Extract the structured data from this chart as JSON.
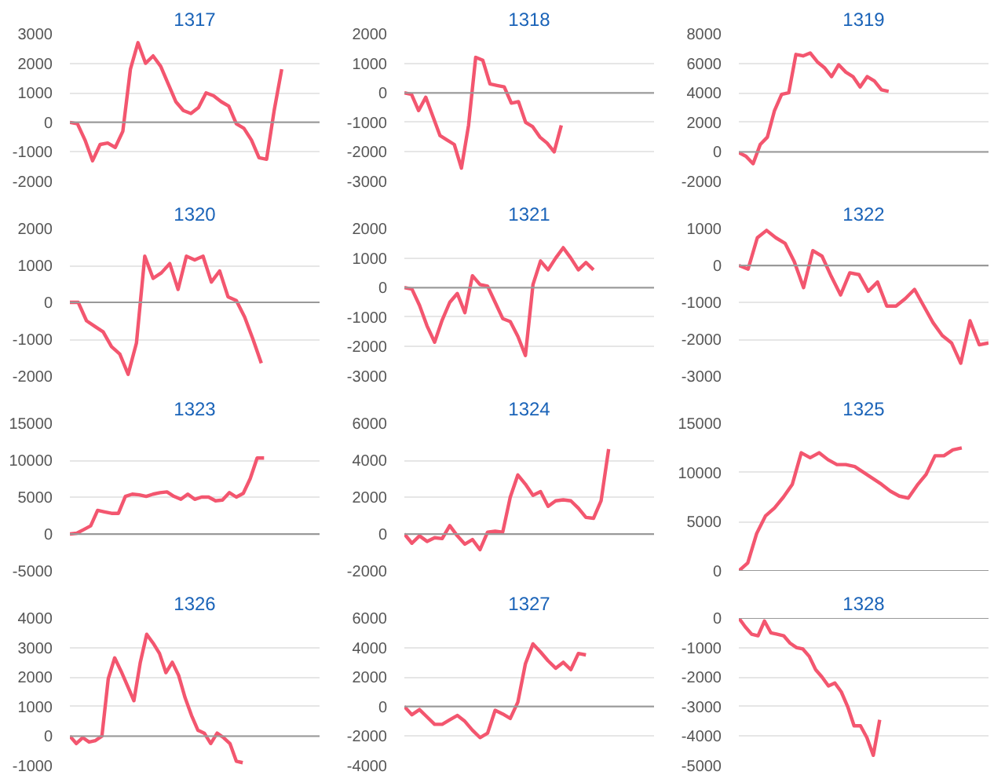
{
  "chart_data": [
    {
      "type": "line",
      "title": "1317",
      "categories": [
        null,
        null,
        null,
        null,
        null,
        null,
        null,
        null,
        null,
        null,
        null,
        null,
        null,
        null,
        null,
        null,
        null,
        null,
        null,
        null,
        null,
        null,
        null,
        null,
        null,
        null,
        null,
        null,
        null,
        null,
        null,
        null,
        null,
        null
      ],
      "series": [
        {
          "color": "#f3566f",
          "values": [
            0,
            -50,
            -600,
            -1300,
            -750,
            -700,
            -850,
            -300,
            1800,
            2700,
            2000,
            2250,
            1900,
            1300,
            700,
            400,
            300,
            500,
            1000,
            900,
            700,
            550,
            -50,
            -200,
            -600,
            -1200,
            -1250,
            400,
            1800,
            null,
            null,
            null,
            null,
            null
          ]
        }
      ],
      "ylim": [
        -2000,
        3000
      ],
      "yticks": [
        -2000,
        -1000,
        0,
        1000,
        2000,
        3000
      ],
      "grid": "y",
      "ref_lines": [
        {
          "axis": "y",
          "value": 0,
          "color": "#999999"
        }
      ],
      "tick_labels": "y"
    },
    {
      "type": "line",
      "title": "1318",
      "categories": [
        null,
        null,
        null,
        null,
        null,
        null,
        null,
        null,
        null,
        null,
        null,
        null,
        null,
        null,
        null,
        null,
        null,
        null,
        null,
        null,
        null,
        null,
        null,
        null,
        null,
        null,
        null,
        null,
        null,
        null,
        null,
        null,
        null,
        null,
        null,
        null
      ],
      "series": [
        {
          "color": "#f3566f",
          "values": [
            0,
            -50,
            -600,
            -150,
            -800,
            -1450,
            -1600,
            -1750,
            -2550,
            -1100,
            1200,
            1100,
            300,
            250,
            200,
            -350,
            -300,
            -1000,
            -1150,
            -1500,
            -1700,
            -2000,
            -1100,
            null,
            null,
            null,
            null,
            null,
            null,
            null,
            null,
            null,
            null,
            null,
            null,
            null
          ]
        }
      ],
      "ylim": [
        -3000,
        2000
      ],
      "yticks": [
        -3000,
        -2000,
        -1000,
        0,
        1000,
        2000
      ],
      "grid": "y",
      "ref_lines": [
        {
          "axis": "y",
          "value": 0,
          "color": "#999999"
        }
      ],
      "tick_labels": "y"
    },
    {
      "type": "line",
      "title": "1319",
      "categories": [
        null,
        null,
        null,
        null,
        null,
        null,
        null,
        null,
        null,
        null,
        null,
        null,
        null,
        null,
        null,
        null,
        null,
        null,
        null,
        null,
        null,
        null,
        null,
        null,
        null,
        null,
        null,
        null,
        null,
        null,
        null,
        null,
        null,
        null,
        null,
        null
      ],
      "series": [
        {
          "color": "#f3566f",
          "values": [
            -50,
            -300,
            -800,
            500,
            1000,
            2800,
            3900,
            4000,
            6600,
            6500,
            6700,
            6100,
            5700,
            5100,
            5900,
            5400,
            5100,
            4400,
            5100,
            4800,
            4200,
            4100,
            null,
            null,
            null,
            null,
            null,
            null,
            null,
            null,
            null,
            null,
            null,
            null,
            null,
            null
          ]
        }
      ],
      "ylim": [
        -2000,
        8000
      ],
      "yticks": [
        -2000,
        0,
        2000,
        4000,
        6000,
        8000
      ],
      "grid": "y",
      "ref_lines": [
        {
          "axis": "y",
          "value": 0,
          "color": "#999999"
        }
      ],
      "tick_labels": "y"
    },
    {
      "type": "line",
      "title": "1320",
      "categories": [
        null,
        null,
        null,
        null,
        null,
        null,
        null,
        null,
        null,
        null,
        null,
        null,
        null,
        null,
        null,
        null,
        null,
        null,
        null,
        null,
        null,
        null,
        null,
        null,
        null,
        null,
        null,
        null,
        null,
        null,
        null
      ],
      "series": [
        {
          "color": "#f3566f",
          "values": [
            0,
            0,
            -500,
            -650,
            -800,
            -1200,
            -1400,
            -1950,
            -1100,
            1250,
            650,
            800,
            1050,
            350,
            1250,
            1150,
            1250,
            550,
            850,
            150,
            50,
            -400,
            -1000,
            -1650,
            null,
            null,
            null,
            null,
            null,
            null,
            null
          ]
        }
      ],
      "ylim": [
        -2000,
        2000
      ],
      "yticks": [
        -2000,
        -1000,
        0,
        1000,
        2000
      ],
      "grid": "y",
      "ref_lines": [
        {
          "axis": "y",
          "value": 0,
          "color": "#999999"
        }
      ],
      "tick_labels": "y"
    },
    {
      "type": "line",
      "title": "1321",
      "categories": [
        null,
        null,
        null,
        null,
        null,
        null,
        null,
        null,
        null,
        null,
        null,
        null,
        null,
        null,
        null,
        null,
        null,
        null,
        null,
        null,
        null,
        null,
        null,
        null,
        null,
        null,
        null,
        null,
        null,
        null,
        null,
        null,
        null,
        null
      ],
      "series": [
        {
          "color": "#f3566f",
          "values": [
            0,
            -50,
            -600,
            -1300,
            -1850,
            -1100,
            -500,
            -200,
            -850,
            400,
            100,
            50,
            -500,
            -1050,
            -1150,
            -1650,
            -2300,
            100,
            900,
            600,
            1000,
            1350,
            1000,
            600,
            850,
            600,
            null,
            null,
            null,
            null,
            null,
            null,
            null,
            null
          ]
        }
      ],
      "ylim": [
        -3000,
        2000
      ],
      "yticks": [
        -3000,
        -2000,
        -1000,
        0,
        1000,
        2000
      ],
      "grid": "y",
      "ref_lines": [
        {
          "axis": "y",
          "value": 0,
          "color": "#999999"
        }
      ],
      "tick_labels": "y"
    },
    {
      "type": "line",
      "title": "1322",
      "categories": [
        null,
        null,
        null,
        null,
        null,
        null,
        null,
        null,
        null,
        null,
        null,
        null,
        null,
        null,
        null,
        null,
        null,
        null,
        null,
        null,
        null,
        null,
        null,
        null,
        null,
        null,
        null,
        null
      ],
      "series": [
        {
          "color": "#f3566f",
          "values": [
            0,
            -100,
            750,
            950,
            750,
            600,
            100,
            -600,
            400,
            250,
            -300,
            -800,
            -200,
            -250,
            -700,
            -450,
            -1100,
            -1100,
            -900,
            -650,
            -1100,
            -1550,
            -1900,
            -2100,
            -2650,
            -1500,
            -2150,
            -2100
          ]
        }
      ],
      "ylim": [
        -3000,
        1000
      ],
      "yticks": [
        -3000,
        -2000,
        -1000,
        0,
        1000
      ],
      "grid": "y",
      "ref_lines": [
        {
          "axis": "y",
          "value": 0,
          "color": "#999999"
        }
      ],
      "tick_labels": "y"
    },
    {
      "type": "line",
      "title": "1323",
      "categories": [
        null,
        null,
        null,
        null,
        null,
        null,
        null,
        null,
        null,
        null,
        null,
        null,
        null,
        null,
        null,
        null,
        null,
        null,
        null,
        null,
        null,
        null,
        null,
        null,
        null,
        null,
        null,
        null,
        null,
        null,
        null,
        null,
        null,
        null,
        null,
        null,
        null
      ],
      "series": [
        {
          "color": "#f3566f",
          "values": [
            0,
            100,
            600,
            1100,
            3200,
            3000,
            2800,
            2800,
            5100,
            5400,
            5300,
            5100,
            5400,
            5600,
            5700,
            5100,
            4700,
            5400,
            4700,
            5000,
            5000,
            4500,
            4600,
            5600,
            5000,
            5500,
            7500,
            10300,
            10300,
            null,
            null,
            null,
            null,
            null,
            null,
            null,
            null
          ]
        }
      ],
      "ylim": [
        -5000,
        15000
      ],
      "yticks": [
        -5000,
        0,
        5000,
        10000,
        15000
      ],
      "grid": "y",
      "ref_lines": [
        {
          "axis": "y",
          "value": 0,
          "color": "#999999"
        }
      ],
      "tick_labels": "y"
    },
    {
      "type": "line",
      "title": "1324",
      "categories": [
        null,
        null,
        null,
        null,
        null,
        null,
        null,
        null,
        null,
        null,
        null,
        null,
        null,
        null,
        null,
        null,
        null,
        null,
        null,
        null,
        null,
        null,
        null,
        null,
        null,
        null,
        null,
        null,
        null,
        null,
        null,
        null,
        null,
        null
      ],
      "series": [
        {
          "color": "#f3566f",
          "values": [
            0,
            -500,
            -100,
            -400,
            -200,
            -250,
            450,
            -100,
            -550,
            -300,
            -850,
            100,
            150,
            100,
            2000,
            3200,
            2700,
            2100,
            2300,
            1500,
            1800,
            1850,
            1800,
            1400,
            900,
            850,
            1800,
            4600,
            null,
            null,
            null,
            null,
            null,
            null
          ]
        }
      ],
      "ylim": [
        -2000,
        6000
      ],
      "yticks": [
        -2000,
        0,
        2000,
        4000,
        6000
      ],
      "grid": "y",
      "ref_lines": [
        {
          "axis": "y",
          "value": 0,
          "color": "#999999"
        }
      ],
      "tick_labels": "y"
    },
    {
      "type": "line",
      "title": "1325",
      "categories": [
        null,
        null,
        null,
        null,
        null,
        null,
        null,
        null,
        null,
        null,
        null,
        null,
        null,
        null,
        null,
        null,
        null,
        null,
        null,
        null,
        null,
        null,
        null,
        null,
        null,
        null,
        null,
        null,
        null
      ],
      "series": [
        {
          "color": "#f3566f",
          "values": [
            0,
            800,
            3800,
            5600,
            6400,
            7500,
            8800,
            12000,
            11500,
            12000,
            11300,
            10800,
            10800,
            10600,
            10000,
            9400,
            8800,
            8100,
            7600,
            7400,
            8700,
            9800,
            11700,
            11700,
            12300,
            12500,
            null,
            null,
            null
          ]
        }
      ],
      "ylim": [
        0,
        15000
      ],
      "yticks": [
        0,
        5000,
        10000,
        15000
      ],
      "grid": "y",
      "ref_lines": [
        {
          "axis": "y",
          "value": 0,
          "color": "#999999"
        }
      ],
      "tick_labels": "y"
    },
    {
      "type": "line",
      "title": "1326",
      "categories": [
        null,
        null,
        null,
        null,
        null,
        null,
        null,
        null,
        null,
        null,
        null,
        null,
        null,
        null,
        null,
        null,
        null,
        null,
        null,
        null,
        null,
        null,
        null,
        null,
        null,
        null,
        null,
        null,
        null,
        null,
        null,
        null,
        null,
        null,
        null,
        null,
        null,
        null,
        null,
        null
      ],
      "series": [
        {
          "color": "#f3566f",
          "values": [
            0,
            -250,
            -50,
            -200,
            -150,
            0,
            1950,
            2650,
            2200,
            1700,
            1200,
            2500,
            3450,
            3150,
            2800,
            2150,
            2500,
            2050,
            1300,
            700,
            200,
            100,
            -250,
            100,
            -50,
            -250,
            -850,
            -900,
            null,
            null,
            null,
            null,
            null,
            null,
            null,
            null,
            null,
            null,
            null,
            null
          ]
        }
      ],
      "ylim": [
        -1000,
        4000
      ],
      "yticks": [
        -1000,
        0,
        1000,
        2000,
        3000,
        4000
      ],
      "grid": "y",
      "ref_lines": [
        {
          "axis": "y",
          "value": 0,
          "color": "#999999"
        }
      ],
      "tick_labels": "y"
    },
    {
      "type": "line",
      "title": "1327",
      "categories": [
        null,
        null,
        null,
        null,
        null,
        null,
        null,
        null,
        null,
        null,
        null,
        null,
        null,
        null,
        null,
        null,
        null,
        null,
        null,
        null,
        null,
        null,
        null,
        null,
        null,
        null,
        null,
        null,
        null,
        null,
        null,
        null,
        null,
        null
      ],
      "series": [
        {
          "color": "#f3566f",
          "values": [
            0,
            -550,
            -200,
            -700,
            -1200,
            -1200,
            -900,
            -600,
            -1000,
            -1600,
            -2100,
            -1800,
            -250,
            -500,
            -800,
            300,
            2900,
            4250,
            3700,
            3100,
            2600,
            3000,
            2500,
            3600,
            3500,
            null,
            null,
            null,
            null,
            null,
            null,
            null,
            null,
            null
          ]
        }
      ],
      "ylim": [
        -4000,
        6000
      ],
      "yticks": [
        -4000,
        -2000,
        0,
        2000,
        4000,
        6000
      ],
      "grid": "y",
      "ref_lines": [
        {
          "axis": "y",
          "value": 0,
          "color": "#999999"
        }
      ],
      "tick_labels": "y"
    },
    {
      "type": "line",
      "title": "1328",
      "categories": [
        null,
        null,
        null,
        null,
        null,
        null,
        null,
        null,
        null,
        null,
        null,
        null,
        null,
        null,
        null,
        null,
        null,
        null,
        null,
        null,
        null,
        null,
        null,
        null,
        null,
        null,
        null,
        null,
        null,
        null,
        null,
        null,
        null,
        null,
        null,
        null,
        null,
        null,
        null,
        null
      ],
      "series": [
        {
          "color": "#f3566f",
          "values": [
            0,
            -300,
            -550,
            -600,
            -100,
            -500,
            -550,
            -600,
            -850,
            -1000,
            -1050,
            -1300,
            -1750,
            -2000,
            -2300,
            -2200,
            -2500,
            -3000,
            -3650,
            -3650,
            -4050,
            -4650,
            -3450,
            null,
            null,
            null,
            null,
            null,
            null,
            null,
            null,
            null,
            null,
            null,
            null,
            null,
            null,
            null,
            null,
            null
          ]
        }
      ],
      "ylim": [
        -5000,
        0
      ],
      "yticks": [
        -5000,
        -4000,
        -3000,
        -2000,
        -1000,
        0
      ],
      "grid": "y",
      "ref_lines": [
        {
          "axis": "y",
          "value": 0,
          "color": "#999999"
        }
      ],
      "tick_labels": "y"
    }
  ]
}
